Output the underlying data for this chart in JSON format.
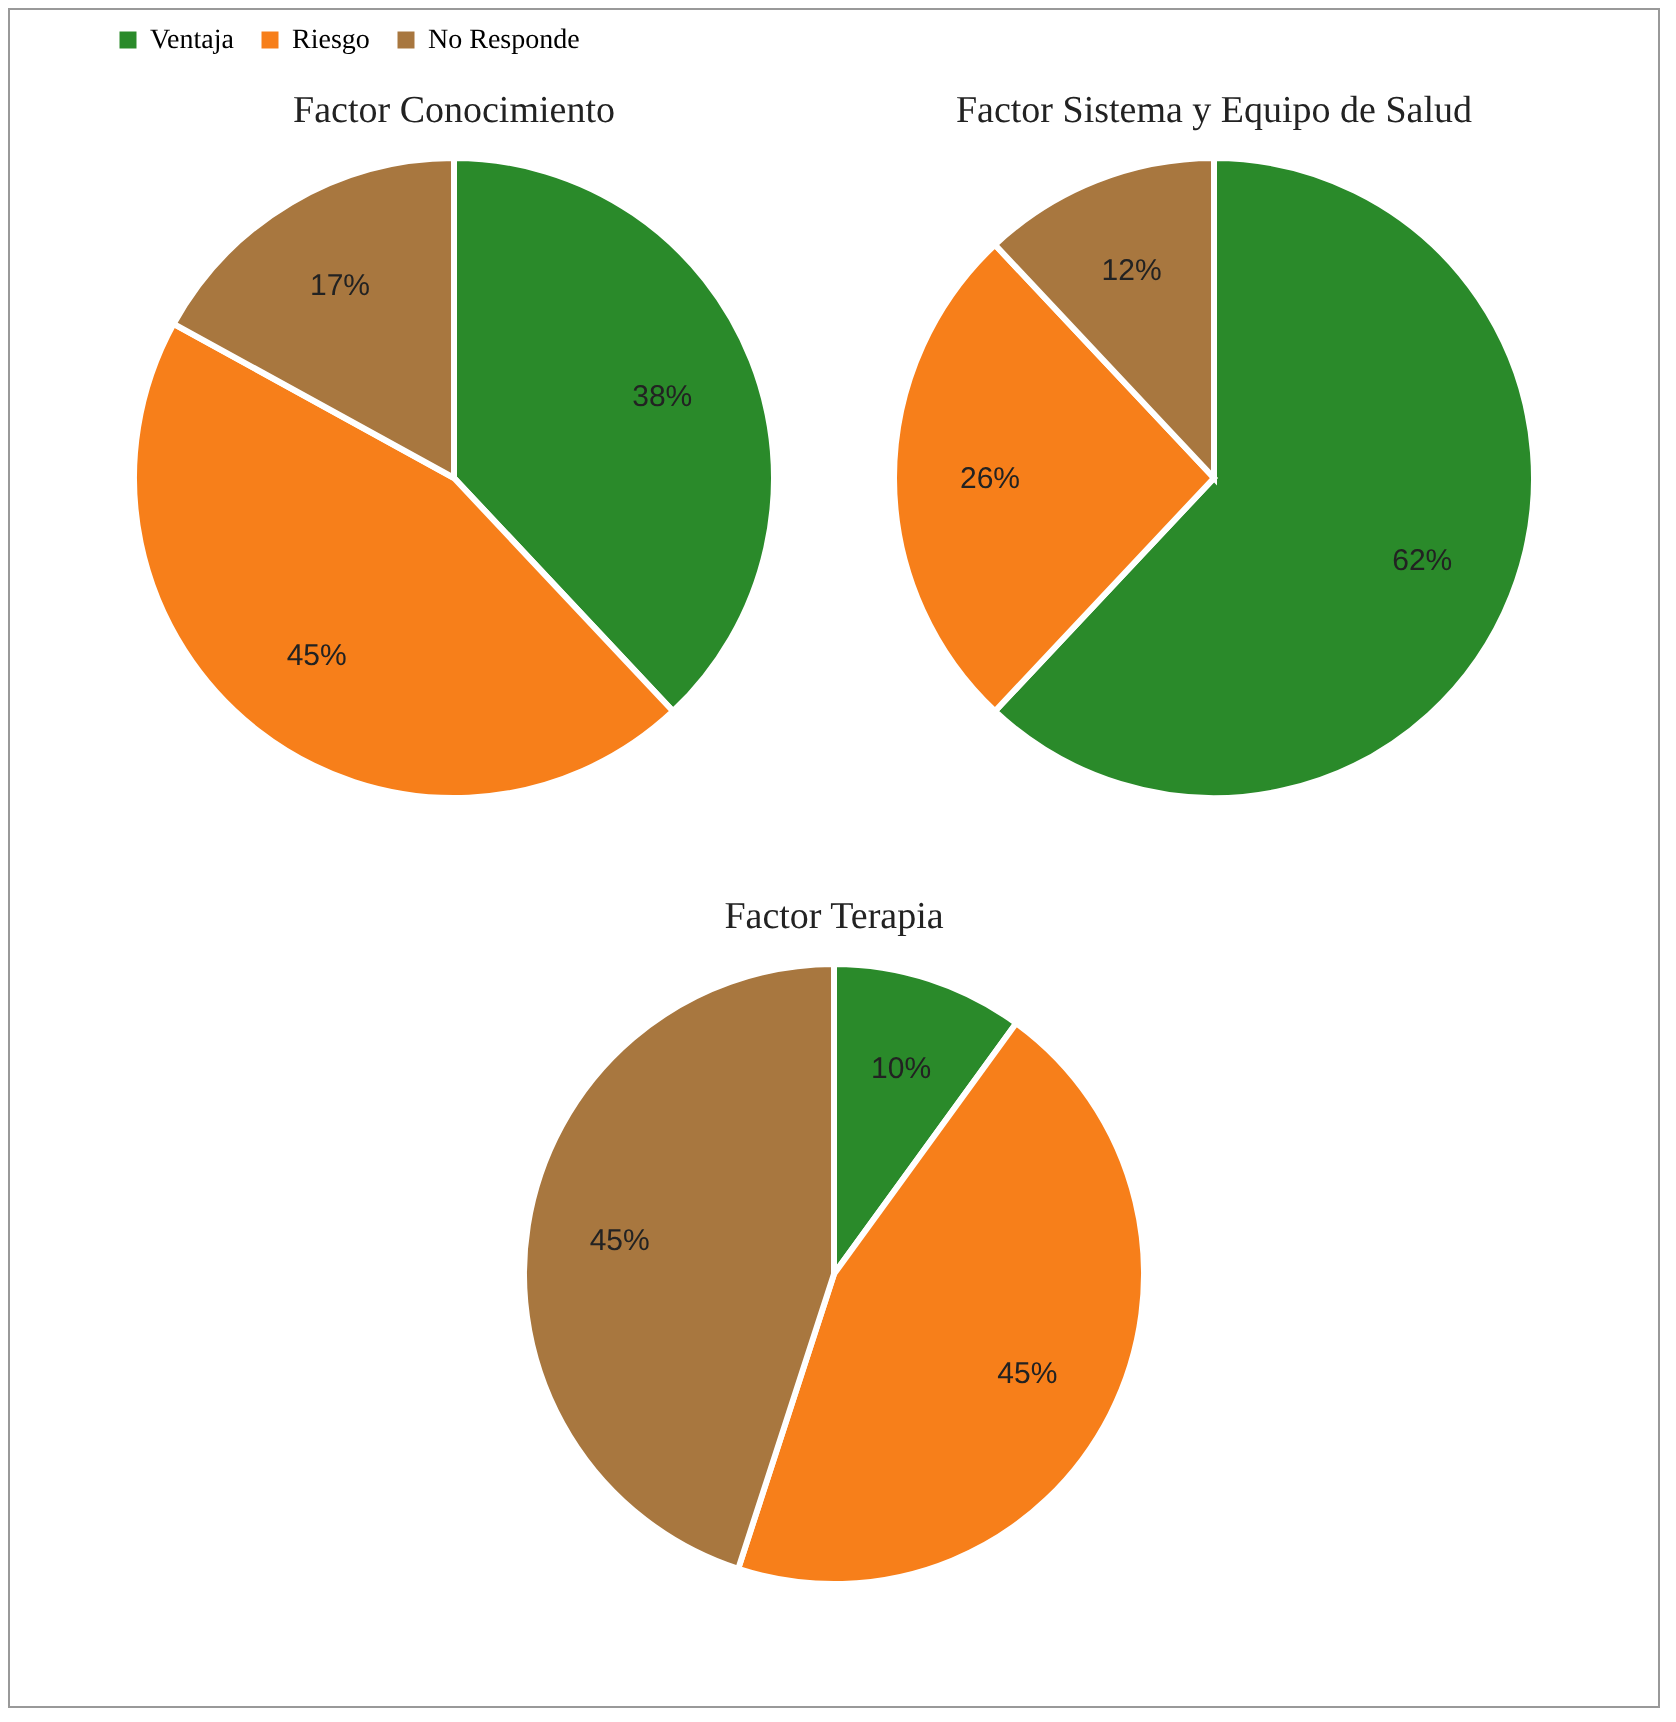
{
  "chart_data": [
    {
      "type": "pie",
      "title": "Factor Conocimiento",
      "categories": [
        "Ventaja",
        "Riesgo",
        "No Responde"
      ],
      "values": [
        38,
        45,
        17
      ],
      "colors": [
        "#2a8a2a",
        "#f77f1a",
        "#a8773f"
      ],
      "value_labels": [
        "38%",
        "45%",
        "17%"
      ],
      "legend": "top"
    },
    {
      "type": "pie",
      "title": "Factor Sistema y Equipo de Salud",
      "categories": [
        null,
        null,
        null
      ],
      "values": [
        62,
        26,
        12
      ],
      "colors": [
        "#2a8a2a",
        "#f77f1a",
        "#a8773f"
      ],
      "value_labels": [
        "62%",
        "26%",
        "12%"
      ]
    },
    {
      "type": "pie",
      "title": "Factor Terapia",
      "categories": [
        null,
        null,
        null
      ],
      "values": [
        10,
        45,
        45
      ],
      "colors": [
        "#2a8a2a",
        "#f77f1a",
        "#a8773f"
      ],
      "value_labels": [
        "10%",
        "45%",
        "45%"
      ]
    }
  ]
}
